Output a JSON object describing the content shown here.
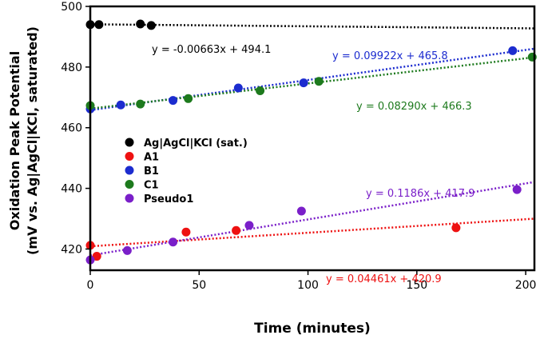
{
  "chart_data": {
    "type": "scatter",
    "title": "",
    "xlabel": "Time (minutes)",
    "ylabel_line1": "Oxidation Peak Potential",
    "ylabel_line2": "(mV vs. Ag|AgCl|KCl, saturated)",
    "xlim": [
      0,
      204
    ],
    "ylim": [
      413,
      500
    ],
    "xticks": [
      0,
      50,
      100,
      150,
      200
    ],
    "yticks": [
      420,
      440,
      460,
      480,
      500
    ],
    "legend_position": "center-left",
    "series": [
      {
        "name": "Ag|AgCl|KCl (sat.)",
        "color": "#000000",
        "x": [
          0,
          4,
          23,
          28
        ],
        "y": [
          494.0,
          494.0,
          494.2,
          493.7
        ],
        "fit": {
          "slope": -0.00663,
          "intercept": 494.1,
          "x_range": [
            0,
            204
          ]
        },
        "equation": "y = -0.00663x + 494.1"
      },
      {
        "name": "A1",
        "color": "#ee1111",
        "x": [
          0,
          3,
          44,
          67,
          168
        ],
        "y": [
          421.2,
          417.6,
          425.6,
          426.1,
          427.0
        ],
        "fit": {
          "slope": 0.04461,
          "intercept": 420.9,
          "x_range": [
            0,
            204
          ]
        },
        "equation": "y = 0.04461x + 420.9"
      },
      {
        "name": "B1",
        "color": "#1c2ccf",
        "x": [
          0,
          14,
          38,
          68,
          98,
          194
        ],
        "y": [
          466.2,
          467.5,
          469.0,
          473.1,
          474.8,
          485.4
        ],
        "fit": {
          "slope": 0.09922,
          "intercept": 465.8,
          "x_range": [
            0,
            204
          ]
        },
        "equation": "y = 0.09922x + 465.8"
      },
      {
        "name": "C1",
        "color": "#1d7a1d",
        "x": [
          0,
          23,
          45,
          78,
          105,
          203
        ],
        "y": [
          467.3,
          467.8,
          469.6,
          472.2,
          475.3,
          483.3
        ],
        "fit": {
          "slope": 0.0829,
          "intercept": 466.3,
          "x_range": [
            0,
            204
          ]
        },
        "equation": "y = 0.08290x + 466.3"
      },
      {
        "name": "Pseudo1",
        "color": "#7a1fc9",
        "x": [
          0,
          17,
          38,
          73,
          97,
          196
        ],
        "y": [
          416.4,
          419.5,
          422.3,
          427.8,
          432.5,
          439.6
        ],
        "fit": {
          "slope": 0.1186,
          "intercept": 417.9,
          "x_range": [
            0,
            204
          ]
        },
        "equation": "y = 0.1186x + 417.9"
      }
    ]
  }
}
